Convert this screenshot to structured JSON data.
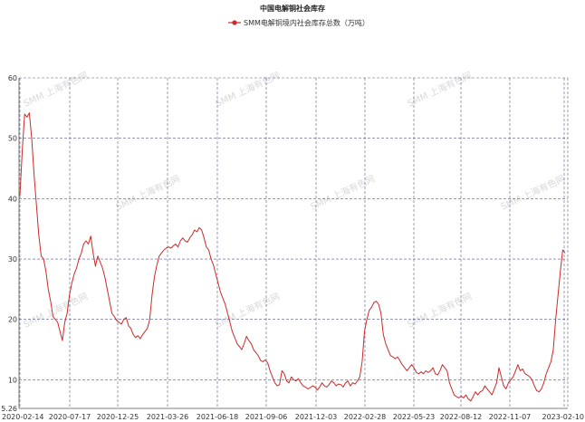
{
  "chart_data": {
    "type": "line",
    "title": "中国电解铜社会库存",
    "legend_position": "top-center",
    "grid": true,
    "watermark": "SMM 上海有色网",
    "xlabel": "",
    "ylabel": "",
    "ylim": [
      5.26,
      60
    ],
    "yticks": [
      60,
      50,
      40,
      30,
      20,
      10,
      5.26
    ],
    "x_tick_labels": [
      "2020-02-14",
      "2020-07-17",
      "2020-12-25",
      "2021-03-26",
      "2021-06-18",
      "2021-09-06",
      "2021-12-03",
      "2022-02-28",
      "2022-05-23",
      "2022-08-12",
      "2022-11-07",
      "2023-02-10"
    ],
    "series": [
      {
        "name": "SMM电解铜境内社会库存总数（万吨）",
        "color": "#cc2a2a",
        "values": [
          40.5,
          48.0,
          54.0,
          53.5,
          54.2,
          50.0,
          44.0,
          39.0,
          34.0,
          30.5,
          30.0,
          28.0,
          25.0,
          23.0,
          20.5,
          20.0,
          19.5,
          18.0,
          16.5,
          19.5,
          21.0,
          24.0,
          26.0,
          27.5,
          28.5,
          30.0,
          31.0,
          32.5,
          33.0,
          32.5,
          33.8,
          31.0,
          28.8,
          30.5,
          29.5,
          28.5,
          27.0,
          25.0,
          23.0,
          21.0,
          20.5,
          19.8,
          19.5,
          19.2,
          20.0,
          20.3,
          19.0,
          18.5,
          17.5,
          17.0,
          17.3,
          16.8,
          17.5,
          18.0,
          18.5,
          20.0,
          24.0,
          27.0,
          29.0,
          30.5,
          31.0,
          31.5,
          31.8,
          32.0,
          31.8,
          32.2,
          32.5,
          32.0,
          33.0,
          33.5,
          33.0,
          32.8,
          33.5,
          34.0,
          34.8,
          34.5,
          35.2,
          34.8,
          33.5,
          32.0,
          31.5,
          30.0,
          29.0,
          27.5,
          26.0,
          24.5,
          23.5,
          22.5,
          21.0,
          19.5,
          18.0,
          17.0,
          16.0,
          15.5,
          15.0,
          16.0,
          17.2,
          16.5,
          16.0,
          15.0,
          14.5,
          14.0,
          13.2,
          13.0,
          13.3,
          12.8,
          11.5,
          10.5,
          9.5,
          9.0,
          9.2,
          11.5,
          11.0,
          9.8,
          9.5,
          10.5,
          10.0,
          9.8,
          10.2,
          9.5,
          9.0,
          8.8,
          8.5,
          8.7,
          9.0,
          8.8,
          8.3,
          8.8,
          9.5,
          9.0,
          8.8,
          9.2,
          9.8,
          9.5,
          9.0,
          9.3,
          9.2,
          8.8,
          9.5,
          9.8,
          9.0,
          9.5,
          9.3,
          9.8,
          10.5,
          13.0,
          18.0,
          20.0,
          21.5,
          22.0,
          22.8,
          23.0,
          22.5,
          21.0,
          17.5,
          16.0,
          15.0,
          14.0,
          13.8,
          13.5,
          13.8,
          13.2,
          12.5,
          12.0,
          11.5,
          12.0,
          12.5,
          12.0,
          11.2,
          11.0,
          11.3,
          11.0,
          11.5,
          11.2,
          11.5,
          12.0,
          11.0,
          10.8,
          11.5,
          12.5,
          12.0,
          11.5,
          9.5,
          8.5,
          7.5,
          7.2,
          7.0,
          7.3,
          7.0,
          7.5,
          6.8,
          6.5,
          7.2,
          8.0,
          7.5,
          8.0,
          8.2,
          9.0,
          8.5,
          8.0,
          7.5,
          8.5,
          9.5,
          12.0,
          10.5,
          9.0,
          8.5,
          9.5,
          10.0,
          10.5,
          11.5,
          12.5,
          11.5,
          11.8,
          11.0,
          10.8,
          10.5,
          10.0,
          9.0,
          8.2,
          8.0,
          8.5,
          9.5,
          11.0,
          12.0,
          13.0,
          15.0,
          20.0,
          24.0,
          28.0,
          31.5,
          31.0
        ]
      }
    ]
  }
}
